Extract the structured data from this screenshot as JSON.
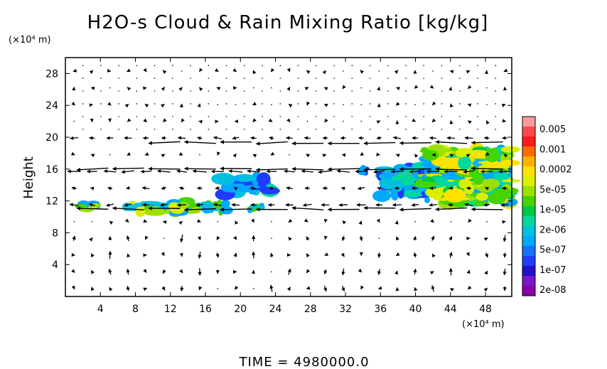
{
  "chart_data": {
    "type": "heatmap",
    "title": "H2O-s Cloud & Rain Mixing Ratio [kg/kg]",
    "ylabel": "Height",
    "x_unit": "(×10⁴ m)",
    "y_unit": "(×10⁴ m)",
    "xlim": [
      0,
      51
    ],
    "ylim": [
      0,
      30
    ],
    "x_ticks": [
      "4",
      "8",
      "12",
      "16",
      "20",
      "24",
      "28",
      "32",
      "36",
      "40",
      "44",
      "48"
    ],
    "y_ticks": [
      "4",
      "8",
      "12",
      "16",
      "20",
      "24",
      "28"
    ],
    "x_tick_values": [
      4,
      8,
      12,
      16,
      20,
      24,
      28,
      32,
      36,
      40,
      44,
      48
    ],
    "y_tick_values": [
      4,
      8,
      12,
      16,
      20,
      24,
      28
    ],
    "time_label": "TIME = 4980000.0",
    "colorbar": {
      "labels": [
        "0.005",
        "0.001",
        "0.0002",
        "5e-05",
        "1e-05",
        "2e-06",
        "5e-07",
        "1e-07",
        "2e-08"
      ],
      "colors": [
        "#ff9a9a",
        "#ff4a4a",
        "#ff1a1a",
        "#ff6a00",
        "#ffb000",
        "#ffe200",
        "#d8f000",
        "#9be000",
        "#46d400",
        "#00c840",
        "#00d8a0",
        "#00c0e0",
        "#00a8ff",
        "#1870ff",
        "#1f3cff",
        "#2010c8",
        "#7a18c8",
        "#8a00a8"
      ]
    },
    "cloud_regions": [
      {
        "x": [
          1.5,
          4.0
        ],
        "y": [
          10.8,
          11.8
        ],
        "level": "mid"
      },
      {
        "x": [
          6.5,
          18.5
        ],
        "y": [
          10.5,
          12.0
        ],
        "level": "mid"
      },
      {
        "x": [
          18.0,
          23.5
        ],
        "y": [
          12.8,
          15.0
        ],
        "level": "low"
      },
      {
        "x": [
          21.0,
          22.8
        ],
        "y": [
          10.7,
          11.7
        ],
        "level": "mid"
      },
      {
        "x": [
          33.5,
          34.5
        ],
        "y": [
          15.4,
          16.4
        ],
        "level": "low"
      },
      {
        "x": [
          36.0,
          41.5
        ],
        "y": [
          12.5,
          16.5
        ],
        "level": "low"
      },
      {
        "x": [
          41.0,
          51.0
        ],
        "y": [
          11.5,
          18.5
        ],
        "level": "high"
      }
    ]
  }
}
